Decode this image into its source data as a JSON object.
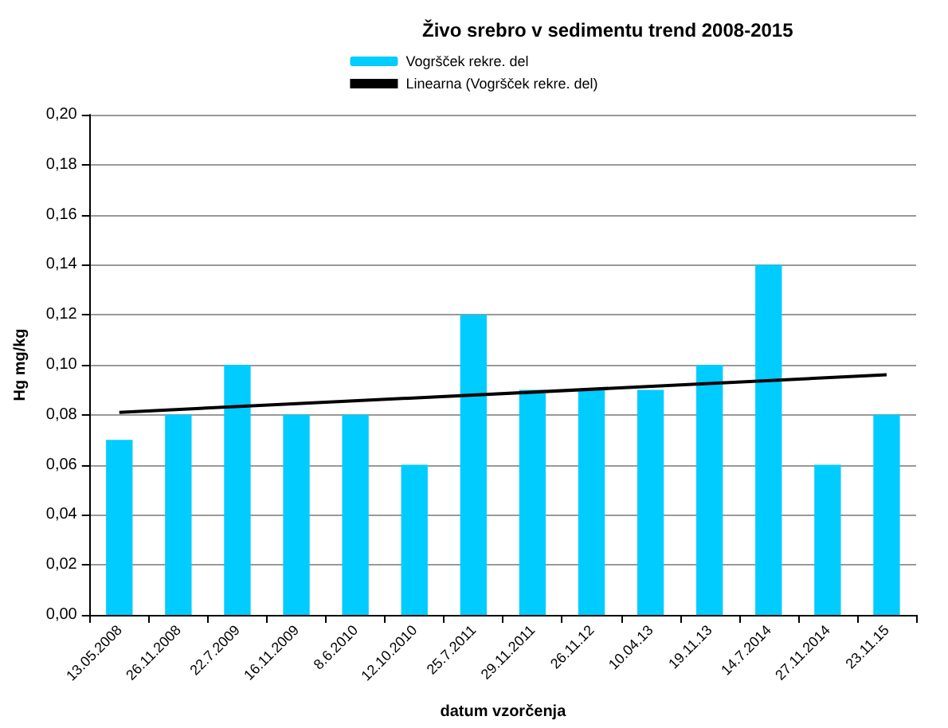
{
  "chart_data": {
    "type": "bar",
    "title": "Živo srebro v sedimentu trend 2008-2015",
    "xlabel": "datum vzorčenja",
    "ylabel": "Hg mg/kg",
    "categories": [
      "13.05.2008",
      "26.11.2008",
      "22.7.2009",
      "16.11.2009",
      "8.6.2010",
      "12.10.2010",
      "25.7.2011",
      "29.11.2011",
      "26.11.12",
      "10.04.13",
      "19.11.13",
      "14.7.2014",
      "27.11.2014",
      "23.11.15"
    ],
    "series": [
      {
        "name": "Vogršček rekre. del",
        "color": "#00ccff",
        "values": [
          0.07,
          0.08,
          0.1,
          0.08,
          0.08,
          0.06,
          0.12,
          0.09,
          0.09,
          0.09,
          0.1,
          0.14,
          0.06,
          0.08
        ]
      },
      {
        "name": "Linearna (Vogršček rekre. del)",
        "type": "line",
        "color": "#000000",
        "x": [
          "13.05.2008",
          "23.11.15"
        ],
        "values": [
          0.081,
          0.096
        ]
      }
    ],
    "ylim": [
      0,
      0.2
    ],
    "yticks": [
      {
        "value": 0,
        "label": "0,00"
      },
      {
        "value": 0.02,
        "label": "0,02"
      },
      {
        "value": 0.04,
        "label": "0,04"
      },
      {
        "value": 0.06,
        "label": "0,06"
      },
      {
        "value": 0.08,
        "label": "0,08"
      },
      {
        "value": 0.1,
        "label": "0,10"
      },
      {
        "value": 0.12,
        "label": "0,12"
      },
      {
        "value": 0.14,
        "label": "0,14"
      },
      {
        "value": 0.16,
        "label": "0,16"
      },
      {
        "value": 0.18,
        "label": "0,18"
      },
      {
        "value": 0.2,
        "label": "0,20"
      }
    ],
    "grid": "y",
    "legend": "top",
    "marker": "none",
    "line_style": "solid"
  }
}
